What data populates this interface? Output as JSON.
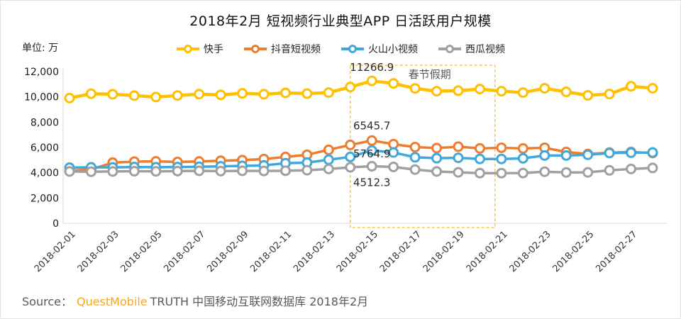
{
  "title": "2018年2月 短视频行业典型APP 日活跃用户规模",
  "unit_label": "单位: 万",
  "source": {
    "prefix": "Source：",
    "brand": "QuestMobile",
    "suffix": "TRUTH 中国移动互联网数据库 2018年2月"
  },
  "colors": {
    "kuaishou": "#FFC000",
    "douyin": "#ED7D31",
    "huoshan": "#41A8DC",
    "xigua": "#A0A0A0",
    "holiday_box": "#FFC000",
    "axis_line": "#D9D9D9",
    "brand_orange": "#F5A623"
  },
  "chart_data": {
    "type": "line",
    "title": "2018年2月 短视频行业典型APP 日活跃用户规模",
    "unit": "万",
    "x": [
      "2018-02-01",
      "2018-02-02",
      "2018-02-03",
      "2018-02-04",
      "2018-02-05",
      "2018-02-06",
      "2018-02-07",
      "2018-02-08",
      "2018-02-09",
      "2018-02-10",
      "2018-02-11",
      "2018-02-12",
      "2018-02-13",
      "2018-02-14",
      "2018-02-15",
      "2018-02-16",
      "2018-02-17",
      "2018-02-18",
      "2018-02-19",
      "2018-02-20",
      "2018-02-21",
      "2018-02-22",
      "2018-02-23",
      "2018-02-24",
      "2018-02-25",
      "2018-02-26",
      "2018-02-27",
      "2018-02-28"
    ],
    "x_tick_every": 2,
    "ylim": [
      0,
      12000
    ],
    "y_ticks": [
      0,
      2000,
      4000,
      6000,
      8000,
      10000,
      12000
    ],
    "y_tick_labels": [
      "0",
      "2,000",
      "4,000",
      "6,000",
      "8,000",
      "10,000",
      "12,000"
    ],
    "grid": false,
    "legend_position": "top",
    "series": [
      {
        "key": "kuaishou",
        "name": "快手",
        "color": "#FFC000",
        "values": [
          9906,
          10250,
          10210,
          10100,
          9990,
          10110,
          10220,
          10160,
          10280,
          10210,
          10320,
          10260,
          10340,
          10780,
          11266.9,
          11065,
          10670,
          10450,
          10490,
          10620,
          10450,
          10340,
          10680,
          10400,
          10120,
          10230,
          10840,
          10680
        ]
      },
      {
        "key": "douyin",
        "name": "抖音短视频",
        "color": "#ED7D31",
        "values": [
          4150,
          4260,
          4800,
          4880,
          4900,
          4850,
          4890,
          4950,
          5000,
          5085,
          5250,
          5420,
          5810,
          6200,
          6545.7,
          6260,
          6030,
          5950,
          6060,
          5925,
          5975,
          5920,
          5975,
          5640,
          5480,
          5590,
          5640,
          5560
        ]
      },
      {
        "key": "huoshan",
        "name": "火山小视频",
        "color": "#41A8DC",
        "values": [
          4400,
          4430,
          4420,
          4450,
          4440,
          4450,
          4470,
          4510,
          4540,
          4580,
          4750,
          4800,
          5030,
          5250,
          5764.9,
          5600,
          5220,
          5150,
          5180,
          5090,
          5090,
          5140,
          5365,
          5365,
          5420,
          5560,
          5585,
          5600
        ]
      },
      {
        "key": "xigua",
        "name": "西瓜视频",
        "color": "#A0A0A0",
        "values": [
          4100,
          4080,
          4100,
          4120,
          4110,
          4130,
          4150,
          4130,
          4150,
          4140,
          4160,
          4200,
          4300,
          4430,
          4512.3,
          4460,
          4250,
          4100,
          4030,
          3970,
          3970,
          3975,
          4080,
          4025,
          4030,
          4190,
          4300,
          4380
        ]
      }
    ],
    "annotations": [
      {
        "text": "11266.9",
        "series": "kuaishou",
        "index": 14,
        "offset_y": -19
      },
      {
        "text": "6545.7",
        "series": "douyin",
        "index": 14,
        "offset_y": -21
      },
      {
        "text": "5764.9",
        "series": "huoshan",
        "index": 14,
        "offset_y": 5
      },
      {
        "text": "4512.3",
        "series": "xigua",
        "index": 14,
        "offset_y": 23
      }
    ],
    "holiday_box": {
      "label": "春节假期",
      "start_index": 13,
      "end_index": 19.7
    }
  }
}
